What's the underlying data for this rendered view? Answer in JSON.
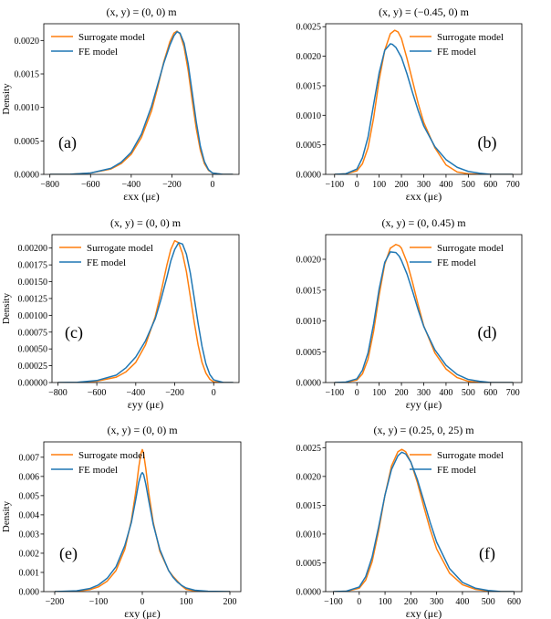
{
  "colors": {
    "surrogate": "#ff7f0e",
    "fe": "#1f77b4"
  },
  "chart_data": [
    {
      "type": "line",
      "panel": "(a)",
      "title": "(x, y) = (0, 0) m",
      "xlabel": "εxx (με)",
      "ylabel": "Density",
      "xlim": [
        -830,
        130
      ],
      "ylim": [
        0,
        0.00225
      ],
      "xticks": [
        -800,
        -600,
        -400,
        -200,
        0
      ],
      "xtick_labels": [
        "−800",
        "−600",
        "−400",
        "−200",
        "0"
      ],
      "yticks": [
        0,
        0.0005,
        0.001,
        0.0015,
        0.002
      ],
      "ytick_labels": [
        "0.0000",
        "0.0005",
        "0.0010",
        "0.0015",
        "0.0020"
      ],
      "legend_labels": [
        "Surrogate model",
        "FE model"
      ],
      "series": [
        {
          "name": "Surrogate model",
          "x": [
            -800,
            -700,
            -600,
            -500,
            -450,
            -400,
            -350,
            -300,
            -270,
            -240,
            -210,
            -190,
            -175,
            -160,
            -140,
            -120,
            -100,
            -80,
            -60,
            -40,
            -20,
            0,
            50,
            100
          ],
          "y": [
            0,
            2e-06,
            2e-05,
            8e-05,
            0.00016,
            0.0003,
            0.00055,
            0.00095,
            0.0013,
            0.00168,
            0.00198,
            0.00211,
            0.00214,
            0.0021,
            0.0019,
            0.00155,
            0.0011,
            0.00068,
            0.00036,
            0.00016,
            6e-05,
            2e-05,
            0,
            0
          ]
        },
        {
          "name": "FE model",
          "x": [
            -800,
            -700,
            -600,
            -500,
            -450,
            -400,
            -350,
            -300,
            -270,
            -240,
            -210,
            -190,
            -175,
            -160,
            -140,
            -120,
            -100,
            -80,
            -60,
            -40,
            -20,
            0,
            50,
            100
          ],
          "y": [
            0,
            2e-06,
            2e-05,
            9e-05,
            0.00018,
            0.00033,
            0.0006,
            0.00102,
            0.00134,
            0.00166,
            0.00193,
            0.00207,
            0.00213,
            0.00211,
            0.00196,
            0.00165,
            0.00122,
            0.00078,
            0.00042,
            0.00019,
            7e-05,
            2e-05,
            0,
            0
          ]
        }
      ]
    },
    {
      "type": "line",
      "panel": "(b)",
      "title": "(x, y) = (−0.45, 0) m",
      "xlabel": "εxx (με)",
      "ylabel": "",
      "xlim": [
        -140,
        740
      ],
      "ylim": [
        0,
        0.00255
      ],
      "xticks": [
        -100,
        0,
        100,
        200,
        300,
        400,
        500,
        600,
        700
      ],
      "xtick_labels": [
        "−100",
        "0",
        "100",
        "200",
        "300",
        "400",
        "500",
        "600",
        "700"
      ],
      "yticks": [
        0,
        0.0005,
        0.001,
        0.0015,
        0.002,
        0.0025
      ],
      "ytick_labels": [
        "0.0000",
        "0.0005",
        "0.0010",
        "0.0015",
        "0.0020",
        "0.0025"
      ],
      "legend_labels": [
        "Surrogate model",
        "FE model"
      ],
      "series": [
        {
          "name": "Surrogate model",
          "x": [
            -100,
            -50,
            0,
            25,
            50,
            75,
            100,
            125,
            150,
            170,
            185,
            200,
            225,
            250,
            275,
            300,
            350,
            400,
            450,
            500,
            550,
            600,
            700
          ],
          "y": [
            0,
            1e-05,
            6e-05,
            0.00018,
            0.00045,
            0.00095,
            0.0016,
            0.0021,
            0.00238,
            0.00244,
            0.00241,
            0.0023,
            0.00196,
            0.00158,
            0.0012,
            0.00088,
            0.00045,
            0.00016,
            4e-05,
            1e-05,
            0,
            0,
            0
          ]
        },
        {
          "name": "FE model",
          "x": [
            -100,
            -50,
            0,
            25,
            50,
            75,
            100,
            125,
            150,
            160,
            175,
            200,
            225,
            250,
            275,
            300,
            350,
            400,
            450,
            500,
            550,
            600,
            700
          ],
          "y": [
            0,
            1e-05,
            9e-05,
            0.00028,
            0.00063,
            0.00118,
            0.00172,
            0.0021,
            0.00221,
            0.0022,
            0.00215,
            0.00198,
            0.0017,
            0.00138,
            0.00108,
            0.00082,
            0.00047,
            0.00025,
            0.00012,
            5e-05,
            2e-05,
            0,
            0
          ]
        }
      ]
    },
    {
      "type": "line",
      "panel": "(c)",
      "title": "(x, y) = (0, 0) m",
      "xlabel": "εyy (με)",
      "ylabel": "Density",
      "xlim": [
        -830,
        130
      ],
      "ylim": [
        0,
        0.0022
      ],
      "xticks": [
        -800,
        -600,
        -400,
        -200,
        0
      ],
      "xtick_labels": [
        "−800",
        "−600",
        "−400",
        "−200",
        "0"
      ],
      "yticks": [
        0,
        0.00025,
        0.0005,
        0.00075,
        0.001,
        0.00125,
        0.0015,
        0.00175,
        0.002
      ],
      "ytick_labels": [
        "0.00000",
        "0.00025",
        "0.00050",
        "0.00075",
        "0.00100",
        "0.00125",
        "0.00150",
        "0.00175",
        "0.00200"
      ],
      "legend_labels": [
        "Surrogate model",
        "FE model"
      ],
      "series": [
        {
          "name": "Surrogate model",
          "x": [
            -800,
            -700,
            -600,
            -500,
            -450,
            -400,
            -350,
            -300,
            -270,
            -240,
            -220,
            -200,
            -180,
            -160,
            -140,
            -120,
            -100,
            -80,
            -60,
            -40,
            -20,
            0,
            50,
            100
          ],
          "y": [
            0,
            2e-06,
            2e-05,
            8e-05,
            0.00016,
            0.0003,
            0.00056,
            0.00098,
            0.00135,
            0.00175,
            0.00198,
            0.00211,
            0.00208,
            0.00192,
            0.00165,
            0.00128,
            0.0009,
            0.00056,
            0.0003,
            0.00014,
            5e-05,
            1e-05,
            0,
            0
          ]
        },
        {
          "name": "FE model",
          "x": [
            -800,
            -700,
            -600,
            -500,
            -450,
            -400,
            -350,
            -300,
            -270,
            -240,
            -220,
            -200,
            -180,
            -160,
            -140,
            -120,
            -100,
            -80,
            -60,
            -40,
            -20,
            0,
            50,
            100
          ],
          "y": [
            0,
            3e-06,
            3e-05,
            0.00011,
            0.00022,
            0.00038,
            0.00062,
            0.00095,
            0.00124,
            0.00157,
            0.00181,
            0.00198,
            0.00208,
            0.00206,
            0.00191,
            0.00163,
            0.00126,
            0.00088,
            0.00054,
            0.00028,
            0.00012,
            4e-05,
            0,
            0
          ]
        }
      ]
    },
    {
      "type": "line",
      "panel": "(d)",
      "title": "(x, y) = (0, 0.45) m",
      "xlabel": "εyy (με)",
      "ylabel": "",
      "xlim": [
        -140,
        740
      ],
      "ylim": [
        0,
        0.0024
      ],
      "xticks": [
        -100,
        0,
        100,
        200,
        300,
        400,
        500,
        600,
        700
      ],
      "xtick_labels": [
        "−100",
        "0",
        "100",
        "200",
        "300",
        "400",
        "500",
        "600",
        "700"
      ],
      "yticks": [
        0,
        0.0005,
        0.001,
        0.0015,
        0.002
      ],
      "ytick_labels": [
        "0.0000",
        "0.0005",
        "0.0010",
        "0.0015",
        "0.0020"
      ],
      "legend_labels": [
        "Surrogate model",
        "FE model"
      ],
      "series": [
        {
          "name": "Surrogate model",
          "x": [
            -100,
            -50,
            0,
            25,
            50,
            75,
            100,
            125,
            150,
            175,
            190,
            200,
            225,
            250,
            275,
            300,
            350,
            400,
            450,
            500,
            550,
            600,
            700
          ],
          "y": [
            0,
            5e-06,
            4e-05,
            0.00014,
            0.00038,
            0.00083,
            0.00142,
            0.00192,
            0.00218,
            0.00224,
            0.00222,
            0.00218,
            0.00195,
            0.00162,
            0.00126,
            0.00092,
            0.00048,
            0.00022,
            8e-05,
            2e-05,
            0,
            0,
            0
          ]
        },
        {
          "name": "FE model",
          "x": [
            -100,
            -50,
            0,
            25,
            50,
            75,
            100,
            125,
            150,
            175,
            190,
            200,
            225,
            250,
            275,
            300,
            350,
            400,
            450,
            500,
            550,
            600,
            700
          ],
          "y": [
            0,
            8e-06,
            6e-05,
            0.0002,
            0.00048,
            0.00095,
            0.00152,
            0.00195,
            0.00212,
            0.00211,
            0.00205,
            0.00198,
            0.00176,
            0.00148,
            0.00118,
            0.00091,
            0.00053,
            0.00028,
            0.00013,
            5e-05,
            2e-05,
            0,
            0
          ]
        }
      ]
    },
    {
      "type": "line",
      "panel": "(e)",
      "title": "(x, y) = (0, 0) m",
      "xlabel": "εxy (με)",
      "ylabel": "Density",
      "xlim": [
        -225,
        225
      ],
      "ylim": [
        0,
        0.0078
      ],
      "xticks": [
        -200,
        -100,
        0,
        100,
        200
      ],
      "xtick_labels": [
        "−200",
        "−100",
        "0",
        "100",
        "200"
      ],
      "yticks": [
        0,
        0.001,
        0.002,
        0.003,
        0.004,
        0.005,
        0.006,
        0.007
      ],
      "ytick_labels": [
        "0.000",
        "0.001",
        "0.002",
        "0.003",
        "0.004",
        "0.005",
        "0.006",
        "0.007"
      ],
      "legend_labels": [
        "Surrogate model",
        "FE model"
      ],
      "series": [
        {
          "name": "Surrogate model",
          "x": [
            -200,
            -150,
            -120,
            -100,
            -80,
            -60,
            -40,
            -25,
            -15,
            -8,
            -3,
            0,
            3,
            8,
            15,
            25,
            40,
            60,
            70,
            80,
            90,
            100,
            120,
            150,
            200
          ],
          "y": [
            0,
            2e-05,
            0.0001,
            0.00025,
            0.00055,
            0.0011,
            0.0022,
            0.0037,
            0.0052,
            0.0065,
            0.0072,
            0.0074,
            0.0072,
            0.0064,
            0.0051,
            0.0036,
            0.0021,
            0.0011,
            0.0008,
            0.00055,
            0.0003,
            0.00012,
            3e-05,
            0,
            0
          ]
        },
        {
          "name": "FE model",
          "x": [
            -200,
            -150,
            -120,
            -100,
            -80,
            -60,
            -40,
            -25,
            -15,
            -8,
            -3,
            0,
            3,
            8,
            15,
            25,
            40,
            60,
            70,
            80,
            90,
            100,
            120,
            150,
            200
          ],
          "y": [
            0,
            4e-05,
            0.00016,
            0.00035,
            0.0007,
            0.0013,
            0.0024,
            0.0036,
            0.0048,
            0.0057,
            0.0061,
            0.0062,
            0.0061,
            0.0056,
            0.0047,
            0.0035,
            0.0022,
            0.0011,
            0.00075,
            0.0005,
            0.00032,
            0.00019,
            7e-05,
            2e-05,
            0
          ]
        }
      ]
    },
    {
      "type": "line",
      "panel": "(f)",
      "title": "(x, y) = (0.25, 0, 25) m",
      "xlabel": "εxy (με)",
      "ylabel": "",
      "xlim": [
        -130,
        630
      ],
      "ylim": [
        0,
        0.0026
      ],
      "xticks": [
        -100,
        0,
        100,
        200,
        300,
        400,
        500,
        600
      ],
      "xtick_labels": [
        "−100",
        "0",
        "100",
        "200",
        "300",
        "400",
        "500",
        "600"
      ],
      "yticks": [
        0,
        0.0005,
        0.001,
        0.0015,
        0.002,
        0.0025
      ],
      "ytick_labels": [
        "0.0000",
        "0.0005",
        "0.0010",
        "0.0015",
        "0.0020",
        "0.0025"
      ],
      "legend_labels": [
        "Surrogate model",
        "FE model"
      ],
      "series": [
        {
          "name": "Surrogate model",
          "x": [
            -100,
            -50,
            0,
            25,
            50,
            75,
            100,
            125,
            150,
            165,
            180,
            200,
            225,
            250,
            275,
            300,
            350,
            400,
            450,
            500,
            550,
            600
          ],
          "y": [
            0,
            5e-06,
            6e-05,
            0.0002,
            0.00052,
            0.00105,
            0.00168,
            0.00218,
            0.00243,
            0.00247,
            0.00243,
            0.00225,
            0.0019,
            0.00148,
            0.00108,
            0.00074,
            0.00032,
            0.00012,
            4e-05,
            1e-05,
            0,
            0
          ]
        },
        {
          "name": "FE model",
          "x": [
            -100,
            -50,
            0,
            25,
            50,
            75,
            100,
            125,
            150,
            165,
            180,
            200,
            225,
            250,
            275,
            300,
            350,
            400,
            450,
            500,
            550,
            600
          ],
          "y": [
            0,
            8e-06,
            8e-05,
            0.00026,
            0.0006,
            0.00112,
            0.00168,
            0.00212,
            0.00236,
            0.00242,
            0.00239,
            0.00225,
            0.00195,
            0.00158,
            0.0012,
            0.00086,
            0.0004,
            0.00016,
            6e-05,
            2e-05,
            0,
            0
          ]
        }
      ]
    }
  ]
}
